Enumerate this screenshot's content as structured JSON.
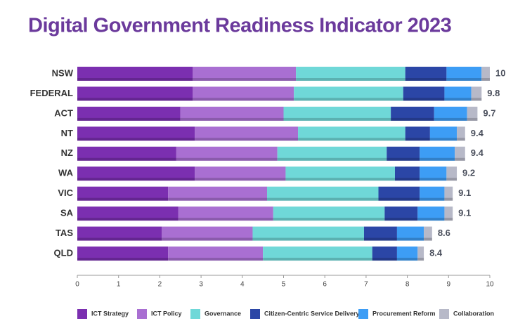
{
  "chart_data": {
    "type": "stacked-barh",
    "title": "Digital Government Readiness Indicator 2023",
    "categories": [
      "NSW",
      "FEDERAL",
      "ACT",
      "NT",
      "NZ",
      "WA",
      "VIC",
      "SA",
      "TAS",
      "QLD"
    ],
    "series": [
      {
        "name": "ICT Strategy",
        "color": "#7b2fb0",
        "values": [
          2.8,
          2.8,
          2.5,
          2.85,
          2.4,
          2.85,
          2.2,
          2.45,
          2.05,
          2.2
        ]
      },
      {
        "name": "ICT Policy",
        "color": "#a96fd2",
        "values": [
          2.5,
          2.45,
          2.5,
          2.5,
          2.45,
          2.2,
          2.4,
          2.3,
          2.2,
          2.3
        ]
      },
      {
        "name": "Governance",
        "color": "#6fd8d8",
        "values": [
          2.65,
          2.65,
          2.6,
          2.6,
          2.65,
          2.65,
          2.7,
          2.7,
          2.7,
          2.65
        ]
      },
      {
        "name": "Citizen-Centric Service Delivery",
        "color": "#2b46a6",
        "values": [
          1.0,
          1.0,
          1.05,
          0.6,
          0.8,
          0.6,
          1.0,
          0.8,
          0.8,
          0.6
        ]
      },
      {
        "name": "Procurement Reform",
        "color": "#3d9df5",
        "values": [
          0.85,
          0.65,
          0.8,
          0.65,
          0.85,
          0.65,
          0.6,
          0.65,
          0.65,
          0.5
        ]
      },
      {
        "name": "Collaboration",
        "color": "#b7b9c8",
        "values": [
          0.2,
          0.25,
          0.25,
          0.2,
          0.25,
          0.25,
          0.2,
          0.2,
          0.2,
          0.15
        ]
      }
    ],
    "totals": [
      10,
      9.8,
      9.7,
      9.4,
      9.4,
      9.2,
      9.1,
      9.1,
      8.6,
      8.4
    ],
    "xlim": [
      0,
      10
    ],
    "xticks": [
      0,
      1,
      2,
      3,
      4,
      5,
      6,
      7,
      8,
      9,
      10
    ]
  }
}
